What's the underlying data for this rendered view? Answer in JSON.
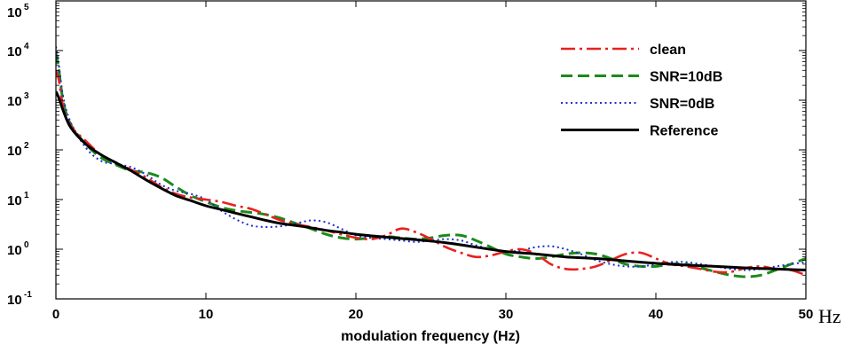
{
  "chart_data": {
    "type": "line",
    "title": "",
    "xlabel": "modulation frequency (Hz)",
    "x_unit_suffix": "Hz",
    "ylabel": "",
    "xlim": [
      0,
      50
    ],
    "ylim": [
      0.1,
      100000
    ],
    "yscale": "log",
    "grid": false,
    "legend_position": "top-right",
    "x_ticks": [
      "0",
      "10",
      "20",
      "30",
      "40",
      "50"
    ],
    "y_ticks": [
      {
        "base": "10",
        "exp": "-1",
        "value": 0.1
      },
      {
        "base": "10",
        "exp": "0",
        "value": 1
      },
      {
        "base": "10",
        "exp": "1",
        "value": 10
      },
      {
        "base": "10",
        "exp": "2",
        "value": 100
      },
      {
        "base": "10",
        "exp": "3",
        "value": 1000
      },
      {
        "base": "10",
        "exp": "4",
        "value": 10000
      },
      {
        "base": "10",
        "exp": "5",
        "value": 100000
      }
    ],
    "series": [
      {
        "name": "clean",
        "color": "#e8211d",
        "dash": "dashdot",
        "x": [
          0,
          0.2,
          0.5,
          1,
          2,
          3,
          4,
          5,
          6,
          7,
          8,
          9,
          10,
          11,
          12,
          13,
          14,
          15,
          16,
          17,
          18,
          19,
          20,
          21,
          22,
          23,
          24,
          25,
          26,
          27,
          28,
          29,
          30,
          31,
          32,
          33,
          34,
          35,
          36,
          37,
          38,
          39,
          40,
          41,
          42,
          43,
          44,
          45,
          46,
          47,
          48,
          49,
          50
        ],
        "y": [
          4000,
          2500,
          700,
          300,
          150,
          80,
          55,
          40,
          28,
          18,
          13,
          11,
          10,
          9,
          7.5,
          6.5,
          5,
          3.8,
          3.2,
          2.8,
          2.4,
          2.0,
          1.7,
          1.6,
          1.9,
          2.6,
          2.2,
          1.6,
          1.1,
          0.85,
          0.7,
          0.75,
          0.9,
          1.0,
          0.8,
          0.5,
          0.4,
          0.4,
          0.45,
          0.6,
          0.8,
          0.85,
          0.65,
          0.5,
          0.45,
          0.4,
          0.35,
          0.35,
          0.42,
          0.45,
          0.4,
          0.38,
          0.3
        ]
      },
      {
        "name": "SNR=10dB",
        "color": "#1a8a1a",
        "dash": "dashed",
        "x": [
          0,
          0.2,
          0.5,
          1,
          2,
          3,
          4,
          5,
          6,
          7,
          8,
          9,
          10,
          11,
          12,
          13,
          14,
          15,
          16,
          17,
          18,
          19,
          20,
          21,
          22,
          23,
          24,
          25,
          26,
          27,
          28,
          29,
          30,
          31,
          32,
          33,
          34,
          35,
          36,
          37,
          38,
          39,
          40,
          41,
          42,
          43,
          44,
          45,
          46,
          47,
          48,
          49,
          50
        ],
        "y": [
          9000,
          4000,
          900,
          320,
          130,
          70,
          50,
          38,
          35,
          28,
          18,
          12,
          9,
          7,
          6,
          5.5,
          5,
          4.2,
          3.3,
          2.6,
          2.0,
          1.7,
          1.6,
          1.7,
          1.8,
          1.7,
          1.6,
          1.7,
          1.9,
          1.9,
          1.5,
          1.1,
          0.8,
          0.7,
          0.65,
          0.7,
          0.8,
          0.85,
          0.8,
          0.65,
          0.5,
          0.45,
          0.45,
          0.5,
          0.5,
          0.42,
          0.35,
          0.3,
          0.28,
          0.3,
          0.38,
          0.5,
          0.65
        ]
      },
      {
        "name": "SNR=0dB",
        "color": "#1c2fd0",
        "dash": "dotted",
        "x": [
          0,
          0.2,
          0.5,
          1,
          2,
          3,
          4,
          5,
          6,
          7,
          8,
          9,
          10,
          11,
          12,
          13,
          14,
          15,
          16,
          17,
          18,
          19,
          20,
          21,
          22,
          23,
          24,
          25,
          26,
          27,
          28,
          29,
          30,
          31,
          32,
          33,
          34,
          35,
          36,
          37,
          38,
          39,
          40,
          41,
          42,
          43,
          44,
          45,
          46,
          47,
          48,
          49,
          50
        ],
        "y": [
          12000,
          5000,
          1100,
          350,
          110,
          60,
          52,
          45,
          32,
          20,
          15,
          13,
          10,
          6,
          4,
          3,
          2.8,
          2.9,
          3.3,
          3.8,
          3.5,
          2.6,
          1.9,
          1.7,
          1.6,
          1.5,
          1.4,
          1.5,
          1.6,
          1.5,
          1.2,
          1.0,
          0.9,
          0.95,
          1.1,
          1.15,
          1.0,
          0.8,
          0.6,
          0.5,
          0.45,
          0.45,
          0.5,
          0.55,
          0.55,
          0.5,
          0.45,
          0.4,
          0.38,
          0.4,
          0.45,
          0.5,
          0.55
        ]
      },
      {
        "name": "Reference",
        "color": "#000000",
        "dash": "solid",
        "x": [
          0,
          0.2,
          0.5,
          1,
          2,
          3,
          4,
          5,
          6,
          7,
          8,
          9,
          10,
          11,
          12,
          13,
          14,
          15,
          16,
          17,
          18,
          19,
          20,
          22,
          24,
          26,
          28,
          30,
          32,
          34,
          36,
          38,
          40,
          42,
          44,
          46,
          48,
          50
        ],
        "y": [
          1500,
          1100,
          600,
          280,
          130,
          80,
          55,
          38,
          25,
          17,
          12,
          9.5,
          7.5,
          6.3,
          5.3,
          4.5,
          3.8,
          3.3,
          3.0,
          2.7,
          2.4,
          2.2,
          2.0,
          1.75,
          1.55,
          1.35,
          1.1,
          0.9,
          0.8,
          0.7,
          0.65,
          0.58,
          0.52,
          0.48,
          0.45,
          0.42,
          0.4,
          0.38
        ]
      }
    ]
  }
}
